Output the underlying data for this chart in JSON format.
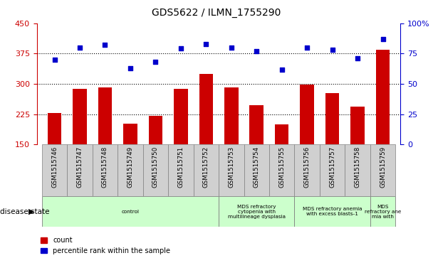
{
  "title": "GDS5622 / ILMN_1755290",
  "samples": [
    "GSM1515746",
    "GSM1515747",
    "GSM1515748",
    "GSM1515749",
    "GSM1515750",
    "GSM1515751",
    "GSM1515752",
    "GSM1515753",
    "GSM1515754",
    "GSM1515755",
    "GSM1515756",
    "GSM1515757",
    "GSM1515758",
    "GSM1515759"
  ],
  "counts": [
    227,
    287,
    291,
    202,
    220,
    287,
    325,
    291,
    247,
    200,
    298,
    277,
    243,
    385
  ],
  "percentile_ranks": [
    70,
    80,
    82,
    63,
    68,
    79,
    83,
    80,
    77,
    62,
    80,
    78,
    71,
    87
  ],
  "ylim_left": [
    150,
    450
  ],
  "ylim_right": [
    0,
    100
  ],
  "yticks_left": [
    150,
    225,
    300,
    375,
    450
  ],
  "yticks_right": [
    0,
    25,
    50,
    75,
    100
  ],
  "yticklabels_right": [
    "0",
    "25",
    "50",
    "75",
    "100%"
  ],
  "bar_color": "#cc0000",
  "dot_color": "#0000cc",
  "bar_width": 0.55,
  "background_color": "#ffffff",
  "disease_groups": [
    {
      "label": "control",
      "start": 0,
      "end": 7
    },
    {
      "label": "MDS refractory\ncytopenia with\nmultilineage dysplasia",
      "start": 7,
      "end": 10
    },
    {
      "label": "MDS refractory anemia\nwith excess blasts-1",
      "start": 10,
      "end": 13
    },
    {
      "label": "MDS\nrefractory ane\nmia with",
      "start": 13,
      "end": 14
    }
  ],
  "group_color": "#ccffcc",
  "label_bg_color": "#d0d0d0",
  "disease_state_label": "disease state",
  "legend_count_color": "#cc0000",
  "legend_pct_color": "#0000cc",
  "legend_count_label": "count",
  "legend_pct_label": "percentile rank within the sample",
  "gridline_values": [
    225,
    300,
    375
  ],
  "gridline_color": "black",
  "gridline_style": ":"
}
